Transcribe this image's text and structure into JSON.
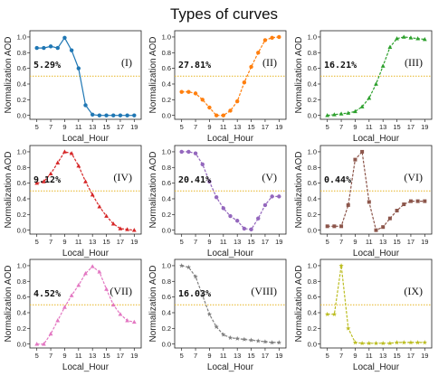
{
  "title": "Types of curves",
  "chart_data": [
    {
      "type": "line",
      "label": "(I)",
      "percent": "5.29%",
      "color": "#1f77b4",
      "marker": "circle",
      "xlabel": "Local_Hour",
      "ylabel": "Normalization AOD",
      "xlim": [
        4,
        20
      ],
      "ylim": [
        -0.05,
        1.08
      ],
      "xticks": [
        5,
        7,
        9,
        11,
        13,
        15,
        17,
        19
      ],
      "yticks": [
        0.0,
        0.2,
        0.4,
        0.6,
        0.8,
        1.0
      ],
      "threshold": 0.5,
      "x": [
        5,
        6,
        7,
        8,
        9,
        10,
        11,
        12,
        13,
        14,
        15,
        16,
        17,
        18,
        19
      ],
      "y": [
        0.86,
        0.86,
        0.88,
        0.86,
        0.99,
        0.83,
        0.6,
        0.13,
        0.01,
        0.0,
        0.0,
        0.0,
        0.0,
        0.0,
        0.0
      ]
    },
    {
      "type": "line",
      "label": "(II)",
      "percent": "27.81%",
      "color": "#ff7f0e",
      "marker": "circle",
      "xlabel": "Local_Hour",
      "ylabel": "Normalization AOD",
      "xlim": [
        4,
        20
      ],
      "ylim": [
        -0.05,
        1.08
      ],
      "xticks": [
        5,
        7,
        9,
        11,
        13,
        15,
        17,
        19
      ],
      "yticks": [
        0.0,
        0.2,
        0.4,
        0.6,
        0.8,
        1.0
      ],
      "threshold": 0.5,
      "x": [
        5,
        6,
        7,
        8,
        9,
        10,
        11,
        12,
        13,
        14,
        15,
        16,
        17,
        18,
        19
      ],
      "y": [
        0.3,
        0.3,
        0.28,
        0.2,
        0.1,
        0.0,
        0.0,
        0.06,
        0.18,
        0.42,
        0.62,
        0.8,
        0.96,
        0.99,
        1.0
      ]
    },
    {
      "type": "line",
      "label": "(III)",
      "percent": "16.21%",
      "color": "#2ca02c",
      "marker": "triangle",
      "xlabel": "Local_Hour",
      "ylabel": "Normalization AOD",
      "xlim": [
        4,
        20
      ],
      "ylim": [
        -0.05,
        1.08
      ],
      "xticks": [
        5,
        7,
        9,
        11,
        13,
        15,
        17,
        19
      ],
      "yticks": [
        0.0,
        0.2,
        0.4,
        0.6,
        0.8,
        1.0
      ],
      "threshold": 0.5,
      "x": [
        5,
        6,
        7,
        8,
        9,
        10,
        11,
        12,
        13,
        14,
        15,
        16,
        17,
        18,
        19
      ],
      "y": [
        0.0,
        0.01,
        0.02,
        0.03,
        0.05,
        0.11,
        0.22,
        0.4,
        0.63,
        0.87,
        0.98,
        1.0,
        0.99,
        0.98,
        0.97
      ]
    },
    {
      "type": "line",
      "label": "(IV)",
      "percent": "9.12%",
      "color": "#d62728",
      "marker": "triangle",
      "xlabel": "Local_Hour",
      "ylabel": "Normalization AOD",
      "xlim": [
        4,
        20
      ],
      "ylim": [
        -0.05,
        1.08
      ],
      "xticks": [
        5,
        7,
        9,
        11,
        13,
        15,
        17,
        19
      ],
      "yticks": [
        0.0,
        0.2,
        0.4,
        0.6,
        0.8,
        1.0
      ],
      "threshold": 0.5,
      "x": [
        5,
        6,
        7,
        8,
        9,
        10,
        11,
        12,
        13,
        14,
        15,
        16,
        17,
        18,
        19
      ],
      "y": [
        0.6,
        0.62,
        0.72,
        0.86,
        1.0,
        0.98,
        0.82,
        0.62,
        0.45,
        0.3,
        0.18,
        0.08,
        0.02,
        0.01,
        0.0
      ]
    },
    {
      "type": "line",
      "label": "(V)",
      "percent": "20.41%",
      "color": "#9467bd",
      "marker": "circle",
      "xlabel": "Local_Hour",
      "ylabel": "Normalization AOD",
      "xlim": [
        4,
        20
      ],
      "ylim": [
        -0.05,
        1.08
      ],
      "xticks": [
        5,
        7,
        9,
        11,
        13,
        15,
        17,
        19
      ],
      "yticks": [
        0.0,
        0.2,
        0.4,
        0.6,
        0.8,
        1.0
      ],
      "threshold": 0.5,
      "x": [
        5,
        6,
        7,
        8,
        9,
        10,
        11,
        12,
        13,
        14,
        15,
        16,
        17,
        18,
        19
      ],
      "y": [
        1.0,
        1.0,
        0.98,
        0.84,
        0.62,
        0.42,
        0.28,
        0.18,
        0.12,
        0.02,
        0.01,
        0.15,
        0.32,
        0.43,
        0.43
      ]
    },
    {
      "type": "line",
      "label": "(VI)",
      "percent": "0.44%",
      "color": "#8c564b",
      "marker": "square",
      "xlabel": "Local_Hour",
      "ylabel": "Normalization AOD",
      "xlim": [
        4,
        20
      ],
      "ylim": [
        -0.05,
        1.08
      ],
      "xticks": [
        5,
        7,
        9,
        11,
        13,
        15,
        17,
        19
      ],
      "yticks": [
        0.0,
        0.2,
        0.4,
        0.6,
        0.8,
        1.0
      ],
      "threshold": 0.5,
      "x": [
        5,
        6,
        7,
        8,
        9,
        10,
        11,
        12,
        13,
        14,
        15,
        16,
        17,
        18,
        19
      ],
      "y": [
        0.05,
        0.05,
        0.05,
        0.32,
        0.9,
        1.0,
        0.36,
        0.0,
        0.04,
        0.15,
        0.25,
        0.33,
        0.37,
        0.37,
        0.37
      ]
    },
    {
      "type": "line",
      "label": "(VII)",
      "percent": "4.52%",
      "color": "#e377c2",
      "marker": "triangle",
      "xlabel": "Local_Hour",
      "ylabel": "Normalization AOD",
      "xlim": [
        4,
        20
      ],
      "ylim": [
        -0.05,
        1.08
      ],
      "xticks": [
        5,
        7,
        9,
        11,
        13,
        15,
        17,
        19
      ],
      "yticks": [
        0.0,
        0.2,
        0.4,
        0.6,
        0.8,
        1.0
      ],
      "threshold": 0.5,
      "x": [
        5,
        6,
        7,
        8,
        9,
        10,
        11,
        12,
        13,
        14,
        15,
        16,
        17,
        18,
        19
      ],
      "y": [
        0.0,
        0.0,
        0.13,
        0.3,
        0.47,
        0.62,
        0.75,
        0.9,
        0.99,
        0.92,
        0.7,
        0.5,
        0.38,
        0.3,
        0.28
      ]
    },
    {
      "type": "line",
      "label": "(VIII)",
      "percent": "16.03%",
      "color": "#7f7f7f",
      "marker": "star",
      "xlabel": "Local_Hour",
      "ylabel": "Normalization AOD",
      "xlim": [
        4,
        20
      ],
      "ylim": [
        -0.05,
        1.08
      ],
      "xticks": [
        5,
        7,
        9,
        11,
        13,
        15,
        17,
        19
      ],
      "yticks": [
        0.0,
        0.2,
        0.4,
        0.6,
        0.8,
        1.0
      ],
      "threshold": 0.5,
      "x": [
        5,
        6,
        7,
        8,
        9,
        10,
        11,
        12,
        13,
        14,
        15,
        16,
        17,
        18,
        19
      ],
      "y": [
        1.0,
        0.98,
        0.86,
        0.62,
        0.38,
        0.22,
        0.12,
        0.08,
        0.07,
        0.06,
        0.05,
        0.04,
        0.03,
        0.02,
        0.02
      ]
    },
    {
      "type": "line",
      "label": "(IX)",
      "percent": "",
      "color": "#bcbd22",
      "marker": "star",
      "xlabel": "Local_Hour",
      "ylabel": "Normalization AOD",
      "xlim": [
        4,
        20
      ],
      "ylim": [
        -0.05,
        1.08
      ],
      "xticks": [
        5,
        7,
        9,
        11,
        13,
        15,
        17,
        19
      ],
      "yticks": [
        0.0,
        0.2,
        0.4,
        0.6,
        0.8,
        1.0
      ],
      "threshold": 0.5,
      "x": [
        5,
        6,
        7,
        8,
        9,
        10,
        11,
        12,
        13,
        14,
        15,
        16,
        17,
        18,
        19
      ],
      "y": [
        0.38,
        0.38,
        1.0,
        0.2,
        0.02,
        0.01,
        0.01,
        0.01,
        0.01,
        0.01,
        0.02,
        0.02,
        0.02,
        0.02,
        0.02
      ]
    }
  ]
}
